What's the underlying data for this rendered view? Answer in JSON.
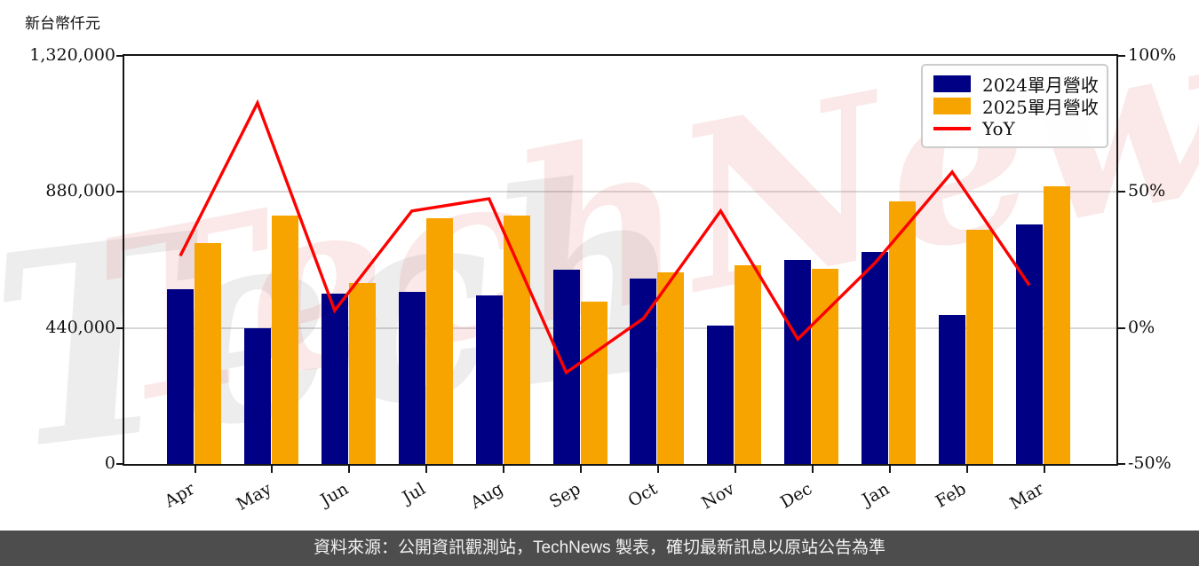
{
  "watermarks": {
    "gray_text": "Tech",
    "pink_text": "TechNews"
  },
  "legend": {
    "items": [
      {
        "label": "2024單月營收",
        "type": "swatch",
        "color": "#000085"
      },
      {
        "label": "2025單月營收",
        "type": "swatch",
        "color": "#F7A400"
      },
      {
        "label": "YoY",
        "type": "line",
        "color": "#FF0000"
      }
    ]
  },
  "footer": {
    "text": "資料來源：公開資訊觀測站，TechNews 製表，確切最新訊息以原站公告為準"
  },
  "chart_data": {
    "type": "bar",
    "title": "",
    "categories": [
      "Apr",
      "May",
      "Jun",
      "Jul",
      "Aug",
      "Sep",
      "Oct",
      "Nov",
      "Dec",
      "Jan",
      "Feb",
      "Mar"
    ],
    "series": [
      {
        "name": "2024單月營收",
        "type": "bar",
        "axis": "left",
        "color": "#000085",
        "values": [
          565000,
          440000,
          550000,
          556000,
          545000,
          628000,
          600000,
          449000,
          659000,
          686000,
          482000,
          776000
        ]
      },
      {
        "name": "2025單月營收",
        "type": "bar",
        "axis": "left",
        "color": "#F7A400",
        "values": [
          715000,
          804000,
          585000,
          795000,
          804000,
          525000,
          621000,
          642000,
          632000,
          850000,
          758000,
          898000
        ]
      },
      {
        "name": "YoY",
        "type": "line",
        "axis": "right",
        "color": "#FF0000",
        "values_pct": [
          26.5,
          82.7,
          6.4,
          43.0,
          47.5,
          -16.4,
          3.5,
          43.0,
          -4.1,
          23.9,
          57.3,
          15.7
        ]
      }
    ],
    "left_axis": {
      "label": "新台幣仟元",
      "unit": "NT$ thousand",
      "ticks": [
        "1,320,000",
        "880,000",
        "440,000",
        "0"
      ],
      "min": 0,
      "max": 1320000
    },
    "right_axis": {
      "ticks": [
        "100%",
        "50%",
        "0%",
        "-50%"
      ],
      "min_pct": -50,
      "max_pct": 100
    },
    "grid": "horizontal-light",
    "legend_position": "upper-right"
  }
}
